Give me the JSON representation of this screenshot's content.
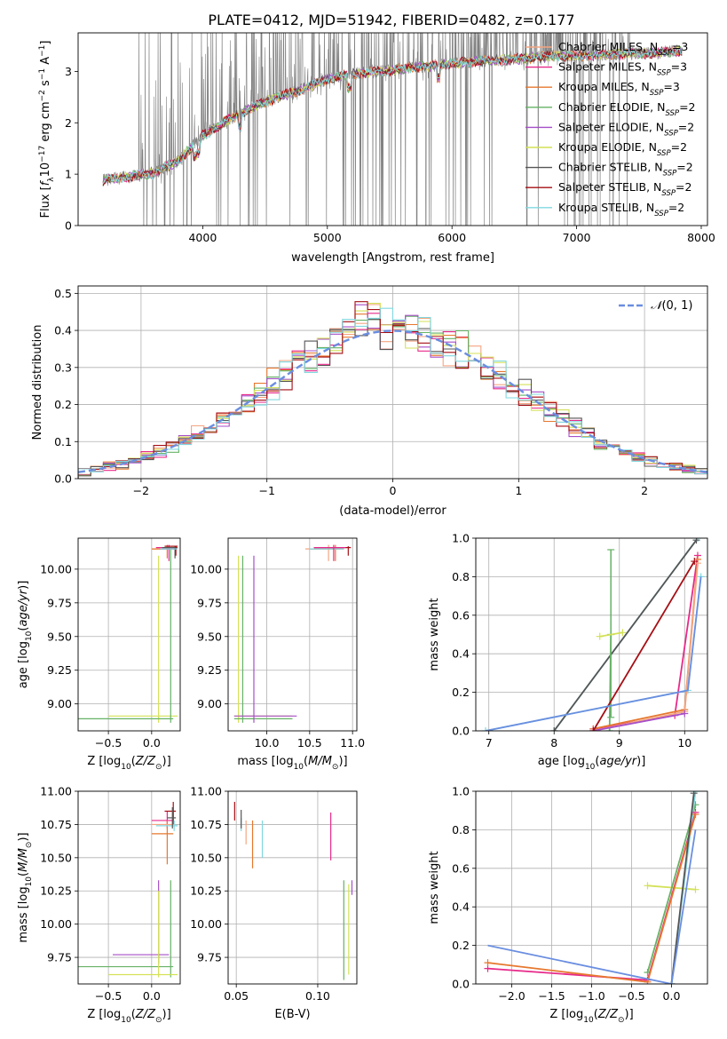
{
  "figure_title": "PLATE=0412, MJD=51942, FIBERID=0482, z=0.177",
  "models": [
    {
      "name": "Chabrier MILES, N$_{SSP}$=3",
      "label_main": "Chabrier MILES, N",
      "label_sub": "SSP",
      "label_tail": "=3",
      "color": "#f4a582"
    },
    {
      "name": "Salpeter MILES, N$_{SSP}$=3",
      "label_main": "Salpeter MILES, N",
      "label_sub": "SSP",
      "label_tail": "=3",
      "color": "#e7298a"
    },
    {
      "name": "Kroupa MILES, N$_{SSP}$=3",
      "label_main": "Kroupa MILES, N",
      "label_sub": "SSP",
      "label_tail": "=3",
      "color": "#e6782f"
    },
    {
      "name": "Chabrier ELODIE, N$_{SSP}$=2",
      "label_main": "Chabrier ELODIE, N",
      "label_sub": "SSP",
      "label_tail": "=2",
      "color": "#66b266"
    },
    {
      "name": "Salpeter ELODIE, N$_{SSP}$=2",
      "label_main": "Salpeter ELODIE, N",
      "label_sub": "SSP",
      "label_tail": "=2",
      "color": "#a64fc8"
    },
    {
      "name": "Kroupa ELODIE, N$_{SSP}$=2",
      "label_main": "Kroupa ELODIE, N",
      "label_sub": "SSP",
      "label_tail": "=2",
      "color": "#d4e157"
    },
    {
      "name": "Chabrier STELIB, N$_{SSP}$=2",
      "label_main": "Chabrier STELIB, N",
      "label_sub": "SSP",
      "label_tail": "=2",
      "color": "#555555"
    },
    {
      "name": "Salpeter STELIB, N$_{SSP}$=2",
      "label_main": "Salpeter STELIB, N",
      "label_sub": "SSP",
      "label_tail": "=2",
      "color": "#a50f15"
    },
    {
      "name": "Kroupa STELIB, N$_{SSP}$=2",
      "label_main": "Kroupa STELIB, N",
      "label_sub": "SSP",
      "label_tail": "=2",
      "color": "#80d8e0"
    }
  ],
  "chart_data": [
    {
      "id": "spectrum",
      "type": "line",
      "xlabel": "wavelength [Angstrom, rest frame]",
      "ylabel": "Flux [f_λ 10^-17 erg cm^-2 s^-1 A^-1]",
      "xlim": [
        3000,
        8050
      ],
      "ylim": [
        0,
        3.75
      ],
      "xticks": [
        4000,
        5000,
        6000,
        7000,
        8000
      ],
      "yticks": [
        0,
        1,
        2,
        3
      ],
      "grid": false,
      "legend": "right",
      "data_color": "#808080",
      "x": [
        3200,
        3400,
        3600,
        3800,
        4000,
        4200,
        4400,
        4600,
        4800,
        5000,
        5200,
        5400,
        5600,
        5800,
        6000,
        6200,
        6400,
        6600,
        6800,
        7000,
        7200,
        7400,
        7600,
        7800
      ],
      "model_flux": [
        0.88,
        0.95,
        1.02,
        1.25,
        1.75,
        2.05,
        2.3,
        2.5,
        2.65,
        2.85,
        2.95,
        3.0,
        3.05,
        3.1,
        3.15,
        3.2,
        3.22,
        3.25,
        3.3,
        3.3,
        3.32,
        3.35,
        3.35,
        3.4
      ]
    },
    {
      "id": "residuals",
      "type": "step",
      "xlabel": "(data-model)/error",
      "ylabel": "Normed distribution",
      "xlim": [
        -2.5,
        2.5
      ],
      "ylim": [
        0,
        0.52
      ],
      "xticks": [
        -2,
        -1,
        0,
        1,
        2
      ],
      "yticks": [
        0,
        0.1,
        0.2,
        0.3,
        0.4,
        0.5
      ],
      "grid": true,
      "legend": "top-right",
      "reference_label": "N(0,1)",
      "reference_color": "#6a8ee0",
      "bin_width": 0.1,
      "bins_start": -2.5
    },
    {
      "id": "age_vs_Z",
      "type": "errorbar",
      "xlabel": "Z [log10(Z/Z⊙)]",
      "ylabel": "age [log10(age/yr)]",
      "xlim": [
        -0.85,
        0.33
      ],
      "ylim": [
        8.8,
        10.23
      ],
      "xticks": [
        -0.5,
        0.0
      ],
      "yticks": [
        9.0,
        9.25,
        9.5,
        9.75,
        10.0
      ],
      "grid": true
    },
    {
      "id": "age_vs_mass",
      "type": "errorbar",
      "xlabel": "mass [log10(M/M⊙)]",
      "ylabel": "",
      "xlim": [
        9.55,
        11.05
      ],
      "ylim": [
        8.8,
        10.23
      ],
      "xticks": [
        10.0,
        10.5,
        11.0
      ],
      "yticks": [
        9.0,
        9.25,
        9.5,
        9.75,
        10.0
      ],
      "grid": true
    },
    {
      "id": "massweight_vs_age",
      "type": "line",
      "xlabel": "age [log10(age/yr)]",
      "ylabel": "mass weight",
      "xlim": [
        6.8,
        10.35
      ],
      "ylim": [
        0,
        1.0
      ],
      "xticks": [
        7,
        8,
        9,
        10
      ],
      "yticks": [
        0.0,
        0.2,
        0.4,
        0.6,
        0.8,
        1.0
      ],
      "grid": true
    },
    {
      "id": "mass_vs_Z",
      "type": "errorbar",
      "xlabel": "Z [log10(Z/Z⊙)]",
      "ylabel": "mass [log10(M/M⊙)]",
      "xlim": [
        -0.85,
        0.33
      ],
      "ylim": [
        9.55,
        11.0
      ],
      "xticks": [
        -0.5,
        0.0
      ],
      "yticks": [
        9.75,
        10.0,
        10.25,
        10.5,
        10.75,
        11.0
      ],
      "grid": true
    },
    {
      "id": "mass_vs_ebv",
      "type": "errorbar",
      "xlabel": "E(B-V)",
      "ylabel": "",
      "xlim": [
        0.045,
        0.124
      ],
      "ylim": [
        9.55,
        11.0
      ],
      "xticks": [
        0.05,
        0.1
      ],
      "yticks": [
        9.75,
        10.0,
        10.25,
        10.5,
        10.75,
        11.0
      ],
      "grid": true
    },
    {
      "id": "massweight_vs_Z",
      "type": "line",
      "xlabel": "Z [log10(Z/Z⊙)]",
      "ylabel": "mass weight",
      "xlim": [
        -2.45,
        0.45
      ],
      "ylim": [
        0,
        1.0
      ],
      "xticks": [
        -2.0,
        -1.5,
        -1.0,
        -0.5,
        0.0
      ],
      "yticks": [
        0.0,
        0.2,
        0.4,
        0.6,
        0.8,
        1.0
      ],
      "grid": true
    }
  ]
}
